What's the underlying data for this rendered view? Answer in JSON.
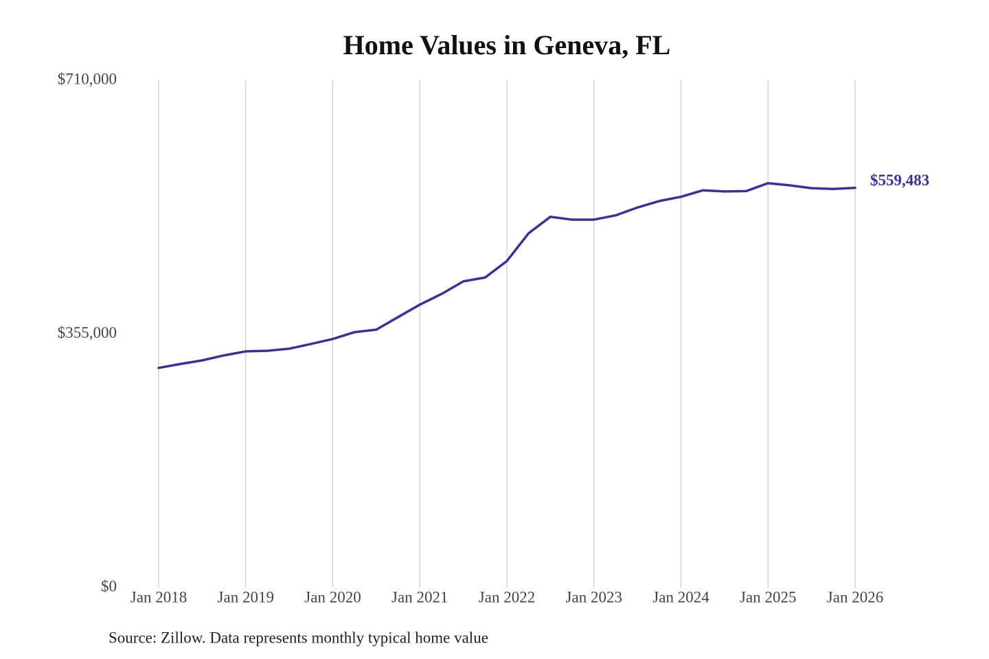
{
  "chart_data": {
    "type": "line",
    "title": "Home Values in Geneva, FL",
    "source": "Source: Zillow. Data represents monthly typical home value",
    "x": [
      "2018-01",
      "2018-04",
      "2018-07",
      "2018-10",
      "2019-01",
      "2019-04",
      "2019-07",
      "2019-10",
      "2020-01",
      "2020-04",
      "2020-07",
      "2020-10",
      "2021-01",
      "2021-04",
      "2021-07",
      "2021-10",
      "2022-01",
      "2022-04",
      "2022-07",
      "2022-10",
      "2023-01",
      "2023-04",
      "2023-07",
      "2023-10",
      "2024-01",
      "2024-04",
      "2024-07",
      "2024-10",
      "2025-01",
      "2025-04",
      "2025-07",
      "2025-10",
      "2026-01"
    ],
    "series": [
      {
        "name": "Geneva, FL",
        "color": "#3a3190",
        "values": [
          307500,
          313000,
          318000,
          325000,
          330600,
          331500,
          334400,
          341000,
          348000,
          357500,
          361000,
          378600,
          396000,
          411000,
          428600,
          434000,
          457000,
          496000,
          519000,
          515000,
          515000,
          521000,
          532000,
          541000,
          547000,
          556000,
          554500,
          555000,
          566000,
          563000,
          559000,
          558000,
          559483
        ],
        "value_labels": [
          null,
          null,
          null,
          null,
          null,
          null,
          null,
          null,
          null,
          null,
          null,
          null,
          null,
          null,
          null,
          null,
          null,
          null,
          null,
          null,
          null,
          null,
          null,
          null,
          null,
          null,
          null,
          null,
          null,
          null,
          null,
          null,
          "$559,483"
        ]
      }
    ],
    "xlim": [
      "2018-01",
      "2026-01"
    ],
    "xticks": [
      {
        "value": "2018-01",
        "label": "Jan 2018"
      },
      {
        "value": "2019-01",
        "label": "Jan 2019"
      },
      {
        "value": "2020-01",
        "label": "Jan 2020"
      },
      {
        "value": "2021-01",
        "label": "Jan 2021"
      },
      {
        "value": "2022-01",
        "label": "Jan 2022"
      },
      {
        "value": "2023-01",
        "label": "Jan 2023"
      },
      {
        "value": "2024-01",
        "label": "Jan 2024"
      },
      {
        "value": "2025-01",
        "label": "Jan 2025"
      },
      {
        "value": "2026-01",
        "label": "Jan 2026"
      }
    ],
    "ylim": [
      0,
      710000
    ],
    "yticks": [
      {
        "value": 0,
        "label": "$0"
      },
      {
        "value": 355000,
        "label": "$355,000"
      },
      {
        "value": 710000,
        "label": "$710,000"
      }
    ],
    "grid": "x"
  }
}
